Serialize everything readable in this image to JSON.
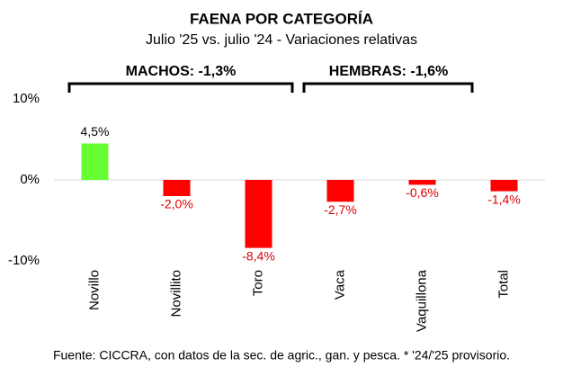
{
  "chart_data": {
    "type": "bar",
    "title": "FAENA POR CATEGORÍA",
    "subtitle": "Julio '25 vs. julio '24 - Variaciones relativas",
    "categories": [
      "Novillo",
      "Novillito",
      "Toro",
      "Vaca",
      "Vaquillona",
      "Total"
    ],
    "values": [
      4.5,
      -2.0,
      -8.4,
      -2.7,
      -0.6,
      -1.4
    ],
    "value_labels": [
      "4,5%",
      "-2,0%",
      "-8,4%",
      "-2,7%",
      "-0,6%",
      "-1,4%"
    ],
    "colors": [
      "#66ff33",
      "#ff0000",
      "#ff0000",
      "#ff0000",
      "#ff0000",
      "#ff0000"
    ],
    "ylim": [
      -10,
      10
    ],
    "yticks": [
      {
        "value": 10,
        "label": "10%"
      },
      {
        "value": 0,
        "label": "0%"
      },
      {
        "value": -10,
        "label": "-10%"
      }
    ],
    "annotations": [
      "MACHOS: -1,3%",
      "HEMBRAS: -1,6%"
    ],
    "source": "Fuente: CICCRA, con datos de la sec. de agric., gan. y pesca. * '24/'25 provisorio."
  }
}
